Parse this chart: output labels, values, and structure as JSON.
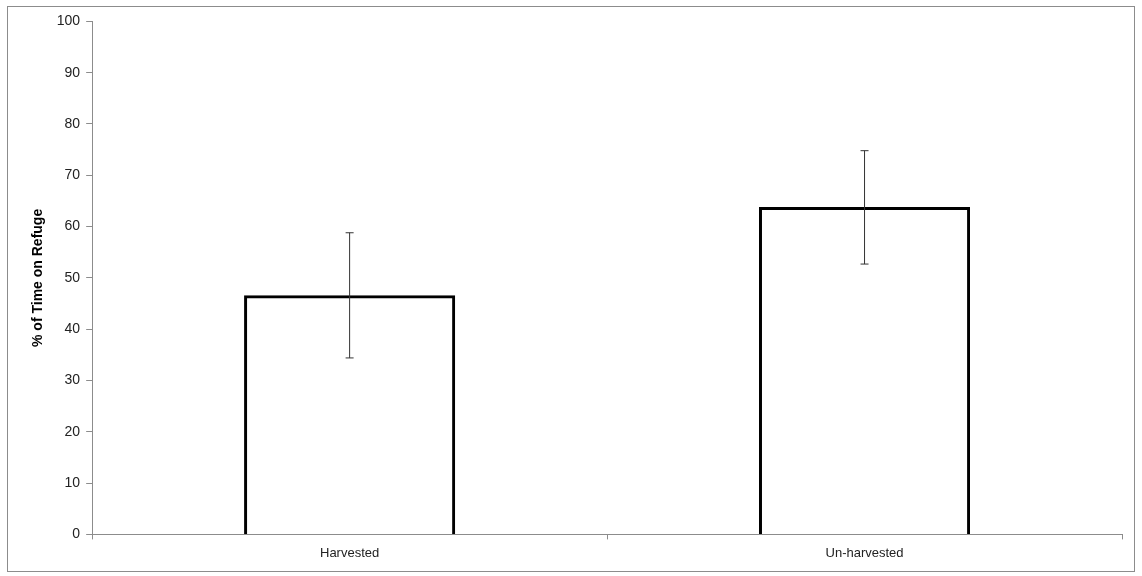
{
  "chart_data": {
    "type": "bar",
    "ylabel": "% of Time on Refuge",
    "categories": [
      "Harvested",
      "Un-harvested"
    ],
    "series": [
      {
        "color": "#000000",
        "values": [
          46.6,
          63.8
        ],
        "errors": [
          [
            34.4,
            58.8
          ],
          [
            52.7,
            74.8
          ]
        ]
      }
    ],
    "ylim": [
      0,
      100
    ],
    "yticks": [
      0,
      10,
      20,
      30,
      40,
      50,
      60,
      70,
      80,
      90,
      100
    ],
    "grid": false,
    "legend": false
  }
}
